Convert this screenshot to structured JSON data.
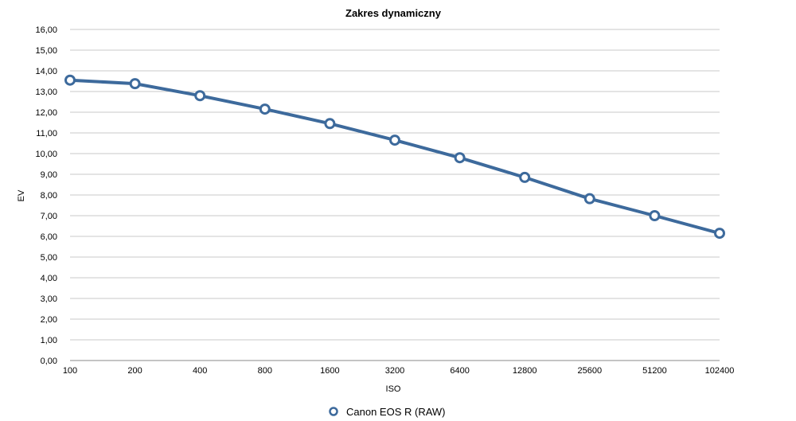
{
  "chart_data": {
    "type": "line",
    "title": "Zakres dynamiczny",
    "xlabel": "ISO",
    "ylabel": "EV",
    "categories": [
      "100",
      "200",
      "400",
      "800",
      "1600",
      "3200",
      "6400",
      "12800",
      "25600",
      "51200",
      "102400"
    ],
    "y_ticks": [
      "0,00",
      "1,00",
      "2,00",
      "3,00",
      "4,00",
      "5,00",
      "6,00",
      "7,00",
      "8,00",
      "9,00",
      "10,00",
      "11,00",
      "12,00",
      "13,00",
      "14,00",
      "15,00",
      "16,00"
    ],
    "ylim": [
      0,
      16
    ],
    "grid": true,
    "legend_position": "bottom-center",
    "series": [
      {
        "name": "Canon EOS R (RAW)",
        "color": "#3d6a9c",
        "values": [
          13.55,
          13.38,
          12.8,
          12.15,
          11.45,
          10.65,
          9.8,
          8.85,
          7.82,
          7.0,
          6.15
        ]
      }
    ]
  }
}
